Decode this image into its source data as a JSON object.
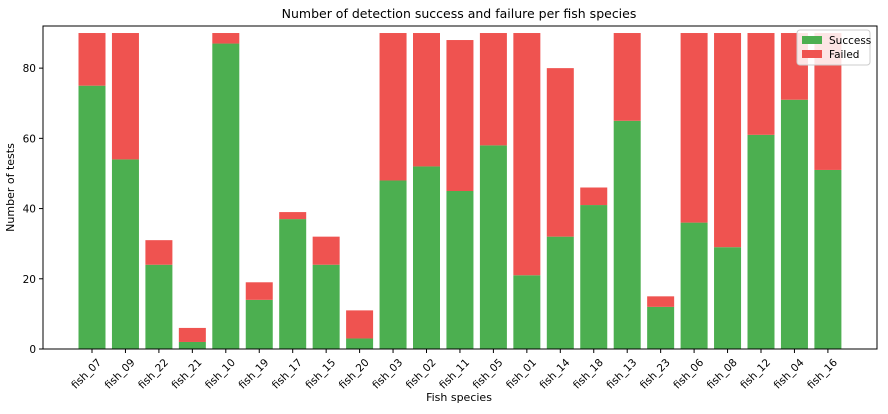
{
  "chart_data": {
    "type": "bar",
    "stacked": true,
    "title": "Number of detection success and failure per fish species",
    "xlabel": "Fish species",
    "ylabel": "Number of tests",
    "ylim": [
      0,
      92
    ],
    "yticks": [
      0,
      20,
      40,
      60,
      80
    ],
    "grid": false,
    "legend_position": "top-right",
    "categories": [
      "fish_07",
      "fish_09",
      "fish_22",
      "fish_21",
      "fish_10",
      "fish_19",
      "fish_17",
      "fish_15",
      "fish_20",
      "fish_03",
      "fish_02",
      "fish_11",
      "fish_05",
      "fish_01",
      "fish_14",
      "fish_18",
      "fish_13",
      "fish_23",
      "fish_06",
      "fish_08",
      "fish_12",
      "fish_04",
      "fish_16"
    ],
    "series": [
      {
        "name": "Success",
        "color": "#4caf50",
        "values": [
          75,
          54,
          24,
          2,
          87,
          14,
          37,
          24,
          3,
          48,
          52,
          45,
          58,
          21,
          32,
          41,
          65,
          12,
          36,
          29,
          61,
          71,
          51
        ]
      },
      {
        "name": "Failed",
        "color": "#ef5350",
        "values": [
          15,
          36,
          7,
          4,
          3,
          5,
          2,
          8,
          8,
          42,
          38,
          43,
          32,
          69,
          48,
          5,
          25,
          3,
          54,
          61,
          29,
          19,
          39
        ]
      }
    ]
  }
}
